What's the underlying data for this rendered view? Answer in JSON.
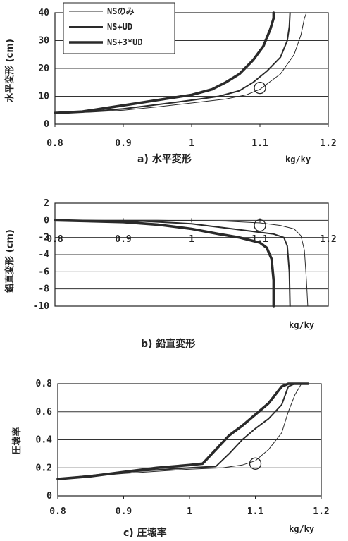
{
  "legend_labels": [
    "NSのみ",
    "NS+UD",
    "NS+3*UD"
  ],
  "chart_data": [
    {
      "type": "line",
      "caption": "a) 水平変形",
      "ylabel": "水平変形 (cm)",
      "xlabel": "kg/ky",
      "xlim": [
        0.8,
        1.2
      ],
      "ylim": [
        0,
        40
      ],
      "xticks": [
        "0.8",
        "0.9",
        "1",
        "1.1",
        "1.2"
      ],
      "yticks": [
        "0",
        "10",
        "20",
        "30",
        "40"
      ],
      "annotation_circle": {
        "x": 1.1,
        "y": 13
      },
      "series": [
        {
          "name": "NSのみ",
          "values": [
            [
              0.8,
              4
            ],
            [
              0.85,
              4.3
            ],
            [
              0.9,
              5
            ],
            [
              0.95,
              6.2
            ],
            [
              1.0,
              7.6
            ],
            [
              1.05,
              9
            ],
            [
              1.08,
              10.5
            ],
            [
              1.1,
              12.5
            ],
            [
              1.13,
              18
            ],
            [
              1.15,
              25
            ],
            [
              1.16,
              32
            ],
            [
              1.165,
              38
            ],
            [
              1.168,
              40
            ]
          ]
        },
        {
          "name": "NS+UD",
          "values": [
            [
              0.8,
              4
            ],
            [
              0.85,
              4.5
            ],
            [
              0.9,
              5.5
            ],
            [
              0.95,
              7
            ],
            [
              1.0,
              8.6
            ],
            [
              1.04,
              10
            ],
            [
              1.07,
              12
            ],
            [
              1.09,
              15
            ],
            [
              1.11,
              19
            ],
            [
              1.13,
              24
            ],
            [
              1.14,
              30
            ],
            [
              1.143,
              35
            ],
            [
              1.144,
              40
            ]
          ]
        },
        {
          "name": "NS+3*UD",
          "values": [
            [
              0.8,
              4
            ],
            [
              0.84,
              4.5
            ],
            [
              0.88,
              6
            ],
            [
              0.92,
              7.5
            ],
            [
              0.96,
              9
            ],
            [
              1.0,
              10.5
            ],
            [
              1.03,
              12.5
            ],
            [
              1.05,
              15
            ],
            [
              1.07,
              18
            ],
            [
              1.09,
              23
            ],
            [
              1.105,
              28
            ],
            [
              1.115,
              34
            ],
            [
              1.12,
              38
            ],
            [
              1.12,
              40
            ]
          ]
        }
      ]
    },
    {
      "type": "line",
      "caption": "b) 鉛直変形",
      "ylabel": "鉛直変形 (cm)",
      "xlabel": "kg/ky",
      "xlim": [
        0.8,
        1.2
      ],
      "ylim": [
        -10,
        2
      ],
      "xticks": [
        "0.8",
        "0.9",
        "1",
        "1.1",
        "1.2"
      ],
      "yticks": [
        "2",
        "0",
        "-2",
        "-4",
        "-6",
        "-8",
        "-10"
      ],
      "annotation_circle": {
        "x": 1.1,
        "y": -0.6
      },
      "series": [
        {
          "name": "NSのみ",
          "values": [
            [
              0.8,
              0
            ],
            [
              0.95,
              0
            ],
            [
              1.05,
              -0.1
            ],
            [
              1.1,
              -0.3
            ],
            [
              1.13,
              -0.6
            ],
            [
              1.15,
              -1.0
            ],
            [
              1.16,
              -1.8
            ],
            [
              1.165,
              -3.5
            ],
            [
              1.168,
              -7
            ],
            [
              1.17,
              -10
            ]
          ]
        },
        {
          "name": "NS+UD",
          "values": [
            [
              0.8,
              0
            ],
            [
              0.93,
              -0.1
            ],
            [
              1.0,
              -0.4
            ],
            [
              1.05,
              -0.9
            ],
            [
              1.09,
              -1.3
            ],
            [
              1.12,
              -1.6
            ],
            [
              1.135,
              -2
            ],
            [
              1.14,
              -3
            ],
            [
              1.143,
              -6
            ],
            [
              1.144,
              -10
            ]
          ]
        },
        {
          "name": "NS+3*UD",
          "values": [
            [
              0.8,
              0
            ],
            [
              0.9,
              -0.2
            ],
            [
              0.95,
              -0.5
            ],
            [
              1.0,
              -1.0
            ],
            [
              1.04,
              -1.6
            ],
            [
              1.07,
              -2.0
            ],
            [
              1.1,
              -2.6
            ],
            [
              1.11,
              -3.2
            ],
            [
              1.117,
              -4.5
            ],
            [
              1.12,
              -7
            ],
            [
              1.12,
              -10
            ]
          ]
        }
      ]
    },
    {
      "type": "line",
      "caption": "c) 圧壊率",
      "ylabel": "圧壊率",
      "xlabel": "kg/ky",
      "xlim": [
        0.8,
        1.2
      ],
      "ylim": [
        0,
        0.8
      ],
      "xticks": [
        "0.8",
        "0.9",
        "1",
        "1.1",
        "1.2"
      ],
      "yticks": [
        "0",
        "0.2",
        "0.4",
        "0.6",
        "0.8"
      ],
      "annotation_circle": {
        "x": 1.1,
        "y": 0.23
      },
      "series": [
        {
          "name": "NSのみ",
          "values": [
            [
              0.8,
              0.12
            ],
            [
              0.9,
              0.16
            ],
            [
              1.0,
              0.19
            ],
            [
              1.05,
              0.2
            ],
            [
              1.08,
              0.22
            ],
            [
              1.1,
              0.25
            ],
            [
              1.12,
              0.33
            ],
            [
              1.14,
              0.45
            ],
            [
              1.15,
              0.6
            ],
            [
              1.16,
              0.72
            ],
            [
              1.17,
              0.8
            ],
            [
              1.18,
              0.8
            ]
          ]
        },
        {
          "name": "NS+UD",
          "values": [
            [
              0.8,
              0.12
            ],
            [
              0.9,
              0.17
            ],
            [
              1.0,
              0.2
            ],
            [
              1.04,
              0.21
            ],
            [
              1.06,
              0.3
            ],
            [
              1.08,
              0.4
            ],
            [
              1.1,
              0.48
            ],
            [
              1.12,
              0.55
            ],
            [
              1.14,
              0.65
            ],
            [
              1.15,
              0.78
            ],
            [
              1.16,
              0.8
            ],
            [
              1.18,
              0.8
            ]
          ]
        },
        {
          "name": "NS+3*UD",
          "values": [
            [
              0.8,
              0.12
            ],
            [
              0.85,
              0.14
            ],
            [
              0.9,
              0.17
            ],
            [
              0.95,
              0.2
            ],
            [
              1.0,
              0.22
            ],
            [
              1.02,
              0.23
            ],
            [
              1.04,
              0.33
            ],
            [
              1.06,
              0.43
            ],
            [
              1.08,
              0.5
            ],
            [
              1.1,
              0.58
            ],
            [
              1.12,
              0.66
            ],
            [
              1.14,
              0.78
            ],
            [
              1.15,
              0.8
            ],
            [
              1.18,
              0.8
            ]
          ]
        }
      ]
    }
  ]
}
